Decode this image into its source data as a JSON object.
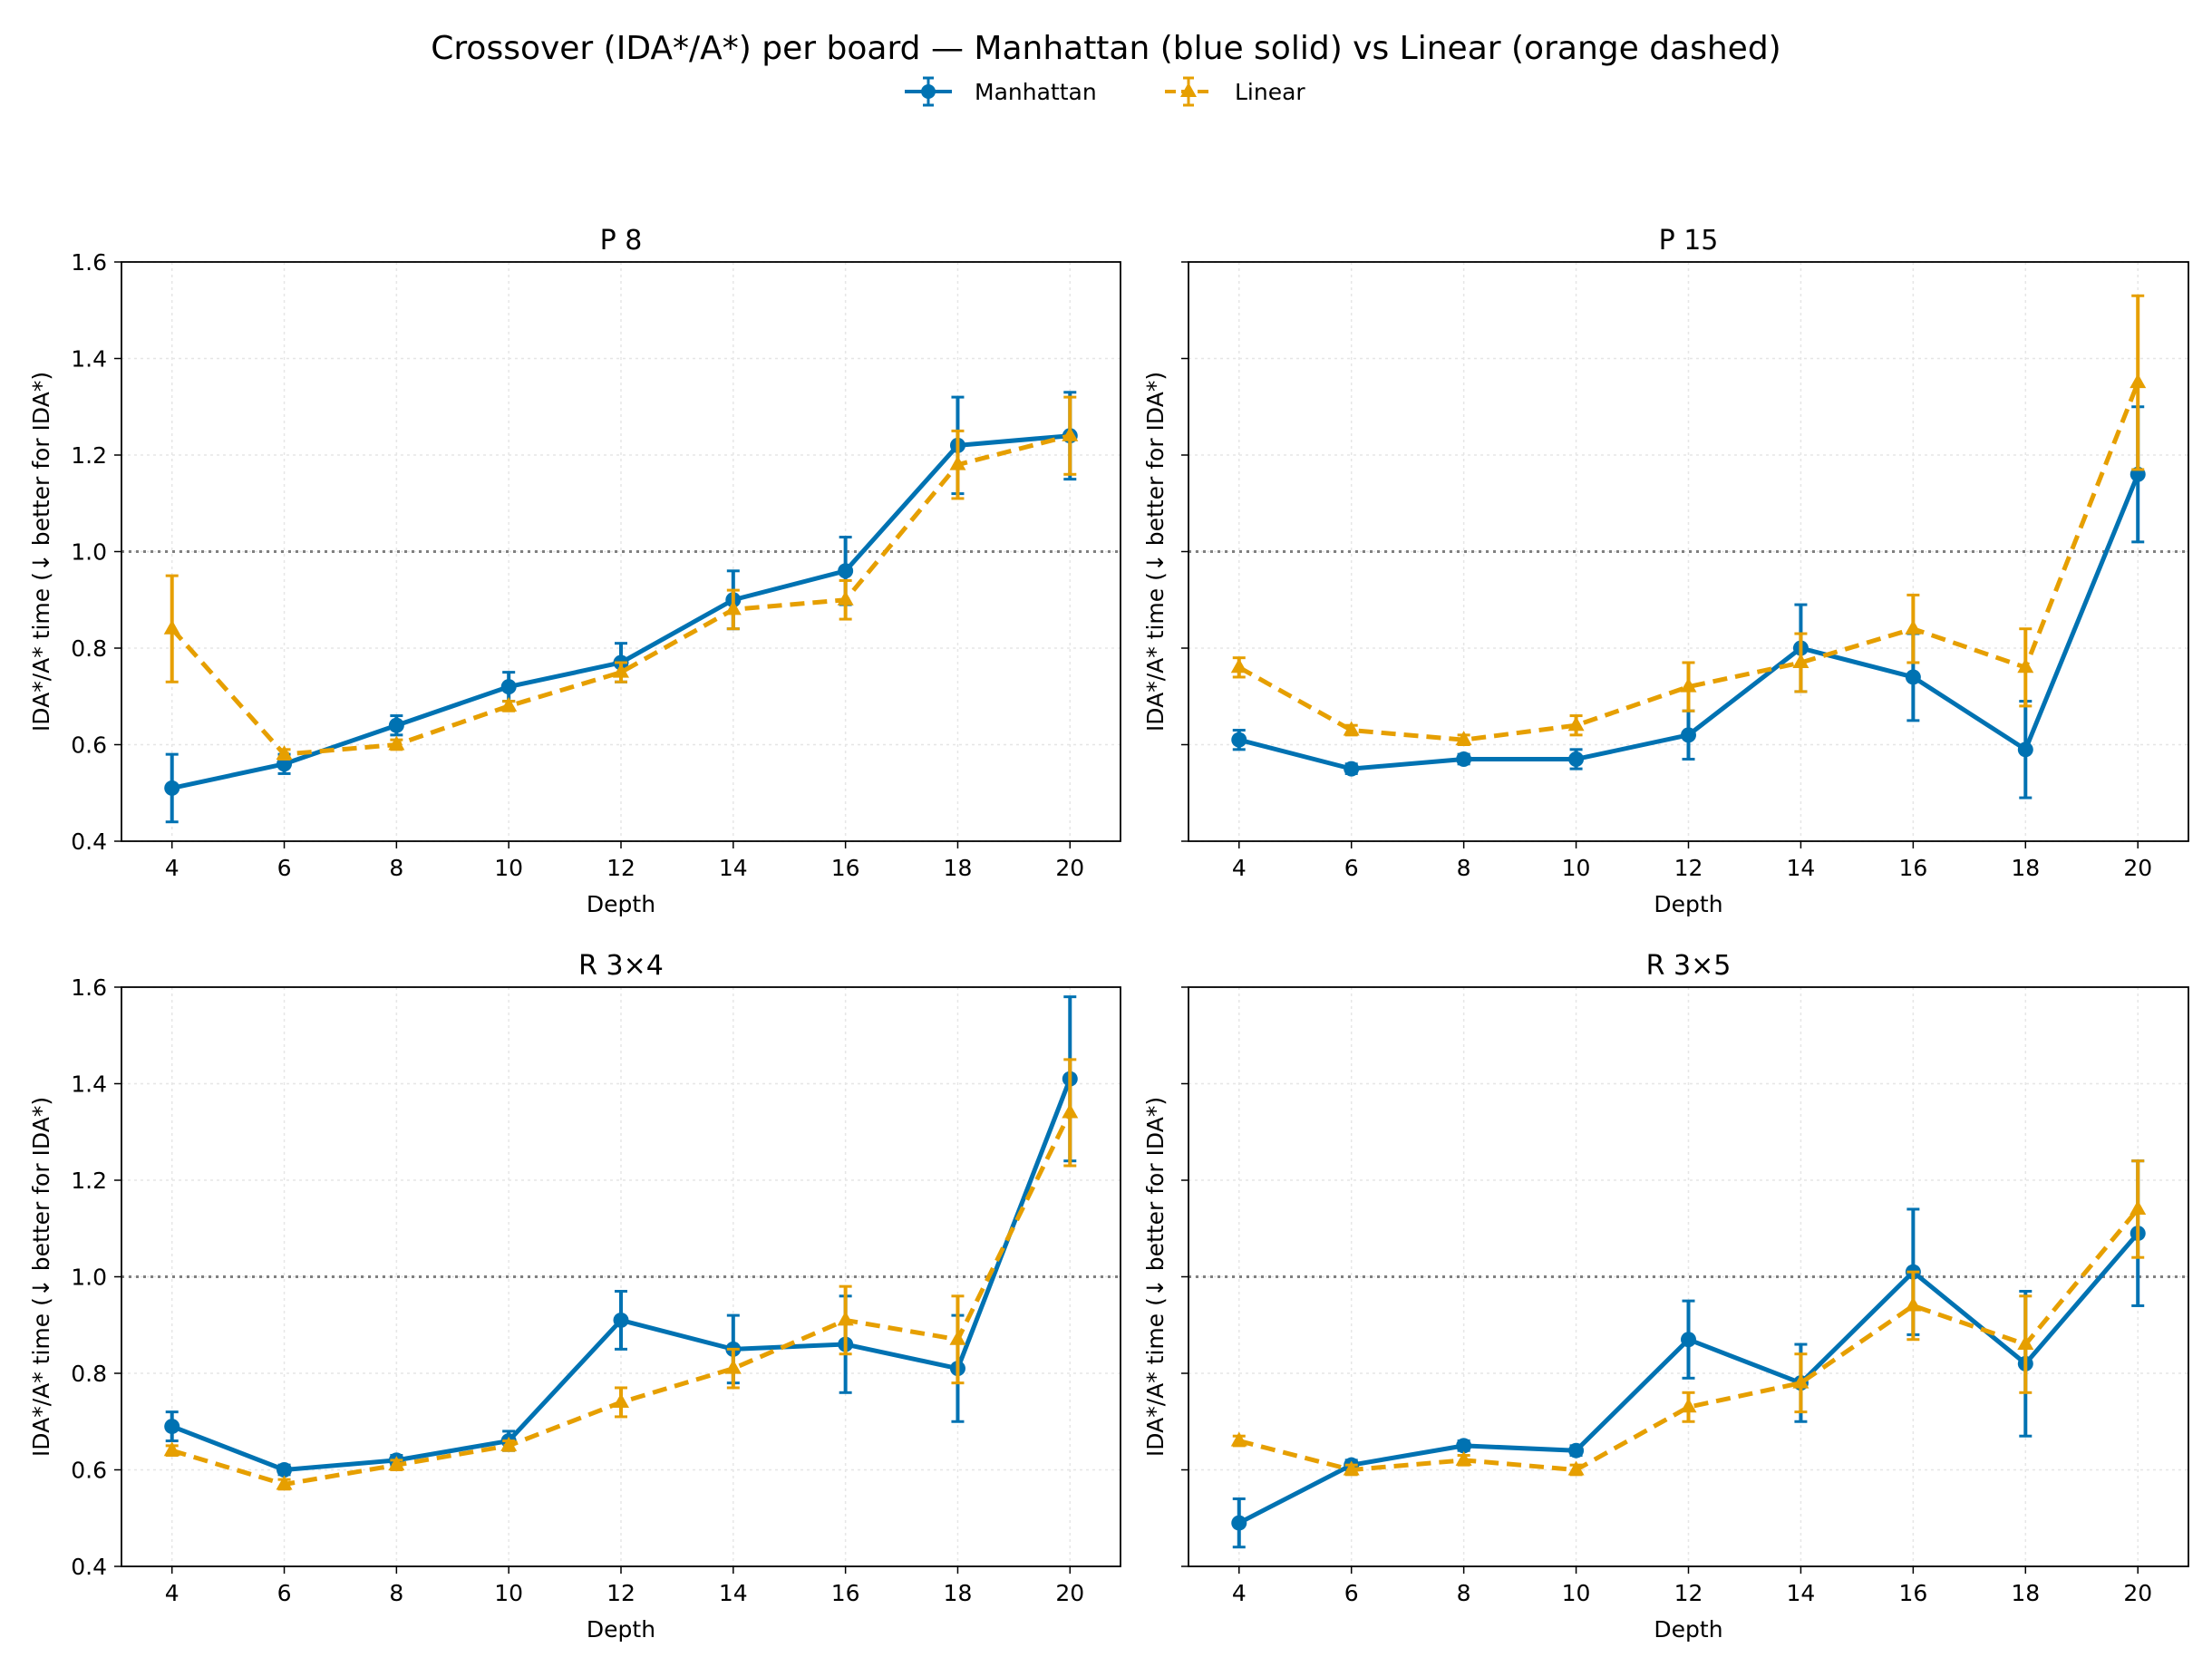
{
  "title": "Crossover (IDA*/A*) per board — Manhattan (blue solid) vs Linear (orange dashed)",
  "legend": {
    "placement": "top-center",
    "items": [
      {
        "label": "Manhattan",
        "color": "#0072b2",
        "marker": "circle",
        "line": "solid"
      },
      {
        "label": "Linear",
        "color": "#e69f00",
        "marker": "triangle",
        "line": "dashed"
      }
    ]
  },
  "chart_data": [
    {
      "type": "line",
      "title": "P 8",
      "xlabel": "Depth",
      "ylabel": "IDA*/A* time (↓ better for IDA*)",
      "x": [
        4,
        6,
        8,
        10,
        12,
        14,
        16,
        18,
        20
      ],
      "xlim": [
        3.1,
        20.9
      ],
      "ylim": [
        0.4,
        1.6
      ],
      "yticks": [
        0.4,
        0.6,
        0.8,
        1.0,
        1.2,
        1.4,
        1.6
      ],
      "show_ytick_labels": true,
      "reference_line": 1.0,
      "grid": true,
      "series": [
        {
          "name": "Manhattan",
          "color": "#0072b2",
          "values": [
            0.51,
            0.56,
            0.64,
            0.72,
            0.77,
            0.9,
            0.96,
            1.22,
            1.24
          ],
          "errors": [
            0.07,
            0.02,
            0.02,
            0.03,
            0.04,
            0.06,
            0.07,
            0.1,
            0.09
          ]
        },
        {
          "name": "Linear",
          "color": "#e69f00",
          "values": [
            0.84,
            0.58,
            0.6,
            0.68,
            0.75,
            0.88,
            0.9,
            1.18,
            1.24
          ],
          "errors": [
            0.11,
            0.01,
            0.01,
            0.01,
            0.02,
            0.04,
            0.04,
            0.07,
            0.08
          ]
        }
      ]
    },
    {
      "type": "line",
      "title": "P 15",
      "xlabel": "Depth",
      "ylabel": "IDA*/A* time (↓ better for IDA*)",
      "x": [
        4,
        6,
        8,
        10,
        12,
        14,
        16,
        18,
        20
      ],
      "xlim": [
        3.1,
        20.9
      ],
      "ylim": [
        0.4,
        1.6
      ],
      "yticks": [
        0.4,
        0.6,
        0.8,
        1.0,
        1.2,
        1.4,
        1.6
      ],
      "show_ytick_labels": false,
      "reference_line": 1.0,
      "grid": true,
      "series": [
        {
          "name": "Manhattan",
          "color": "#0072b2",
          "values": [
            0.61,
            0.55,
            0.57,
            0.57,
            0.62,
            0.8,
            0.74,
            0.59,
            1.16
          ],
          "errors": [
            0.02,
            0.01,
            0.01,
            0.02,
            0.05,
            0.09,
            0.09,
            0.1,
            0.14
          ]
        },
        {
          "name": "Linear",
          "color": "#e69f00",
          "values": [
            0.76,
            0.63,
            0.61,
            0.64,
            0.72,
            0.77,
            0.84,
            0.76,
            1.35
          ],
          "errors": [
            0.02,
            0.01,
            0.01,
            0.02,
            0.05,
            0.06,
            0.07,
            0.08,
            0.18
          ]
        }
      ]
    },
    {
      "type": "line",
      "title": "R 3×4",
      "xlabel": "Depth",
      "ylabel": "IDA*/A* time (↓ better for IDA*)",
      "x": [
        4,
        6,
        8,
        10,
        12,
        14,
        16,
        18,
        20
      ],
      "xlim": [
        3.1,
        20.9
      ],
      "ylim": [
        0.4,
        1.6
      ],
      "yticks": [
        0.4,
        0.6,
        0.8,
        1.0,
        1.2,
        1.4,
        1.6
      ],
      "show_ytick_labels": true,
      "reference_line": 1.0,
      "grid": true,
      "series": [
        {
          "name": "Manhattan",
          "color": "#0072b2",
          "values": [
            0.69,
            0.6,
            0.62,
            0.66,
            0.91,
            0.85,
            0.86,
            0.81,
            1.41
          ],
          "errors": [
            0.03,
            0.01,
            0.01,
            0.02,
            0.06,
            0.07,
            0.1,
            0.11,
            0.17
          ]
        },
        {
          "name": "Linear",
          "color": "#e69f00",
          "values": [
            0.64,
            0.57,
            0.61,
            0.65,
            0.74,
            0.81,
            0.91,
            0.87,
            1.34
          ],
          "errors": [
            0.01,
            0.01,
            0.01,
            0.01,
            0.03,
            0.04,
            0.07,
            0.09,
            0.11
          ]
        }
      ]
    },
    {
      "type": "line",
      "title": "R 3×5",
      "xlabel": "Depth",
      "ylabel": "IDA*/A* time (↓ better for IDA*)",
      "x": [
        4,
        6,
        8,
        10,
        12,
        14,
        16,
        18,
        20
      ],
      "xlim": [
        3.1,
        20.9
      ],
      "ylim": [
        0.4,
        1.6
      ],
      "yticks": [
        0.4,
        0.6,
        0.8,
        1.0,
        1.2,
        1.4,
        1.6
      ],
      "show_ytick_labels": false,
      "reference_line": 1.0,
      "grid": true,
      "series": [
        {
          "name": "Manhattan",
          "color": "#0072b2",
          "values": [
            0.49,
            0.61,
            0.65,
            0.64,
            0.87,
            0.78,
            1.01,
            0.82,
            1.09
          ],
          "errors": [
            0.05,
            0.01,
            0.01,
            0.01,
            0.08,
            0.08,
            0.13,
            0.15,
            0.15
          ]
        },
        {
          "name": "Linear",
          "color": "#e69f00",
          "values": [
            0.66,
            0.6,
            0.62,
            0.6,
            0.73,
            0.78,
            0.94,
            0.86,
            1.14
          ],
          "errors": [
            0.01,
            0.01,
            0.01,
            0.01,
            0.03,
            0.06,
            0.07,
            0.1,
            0.1
          ]
        }
      ]
    }
  ]
}
